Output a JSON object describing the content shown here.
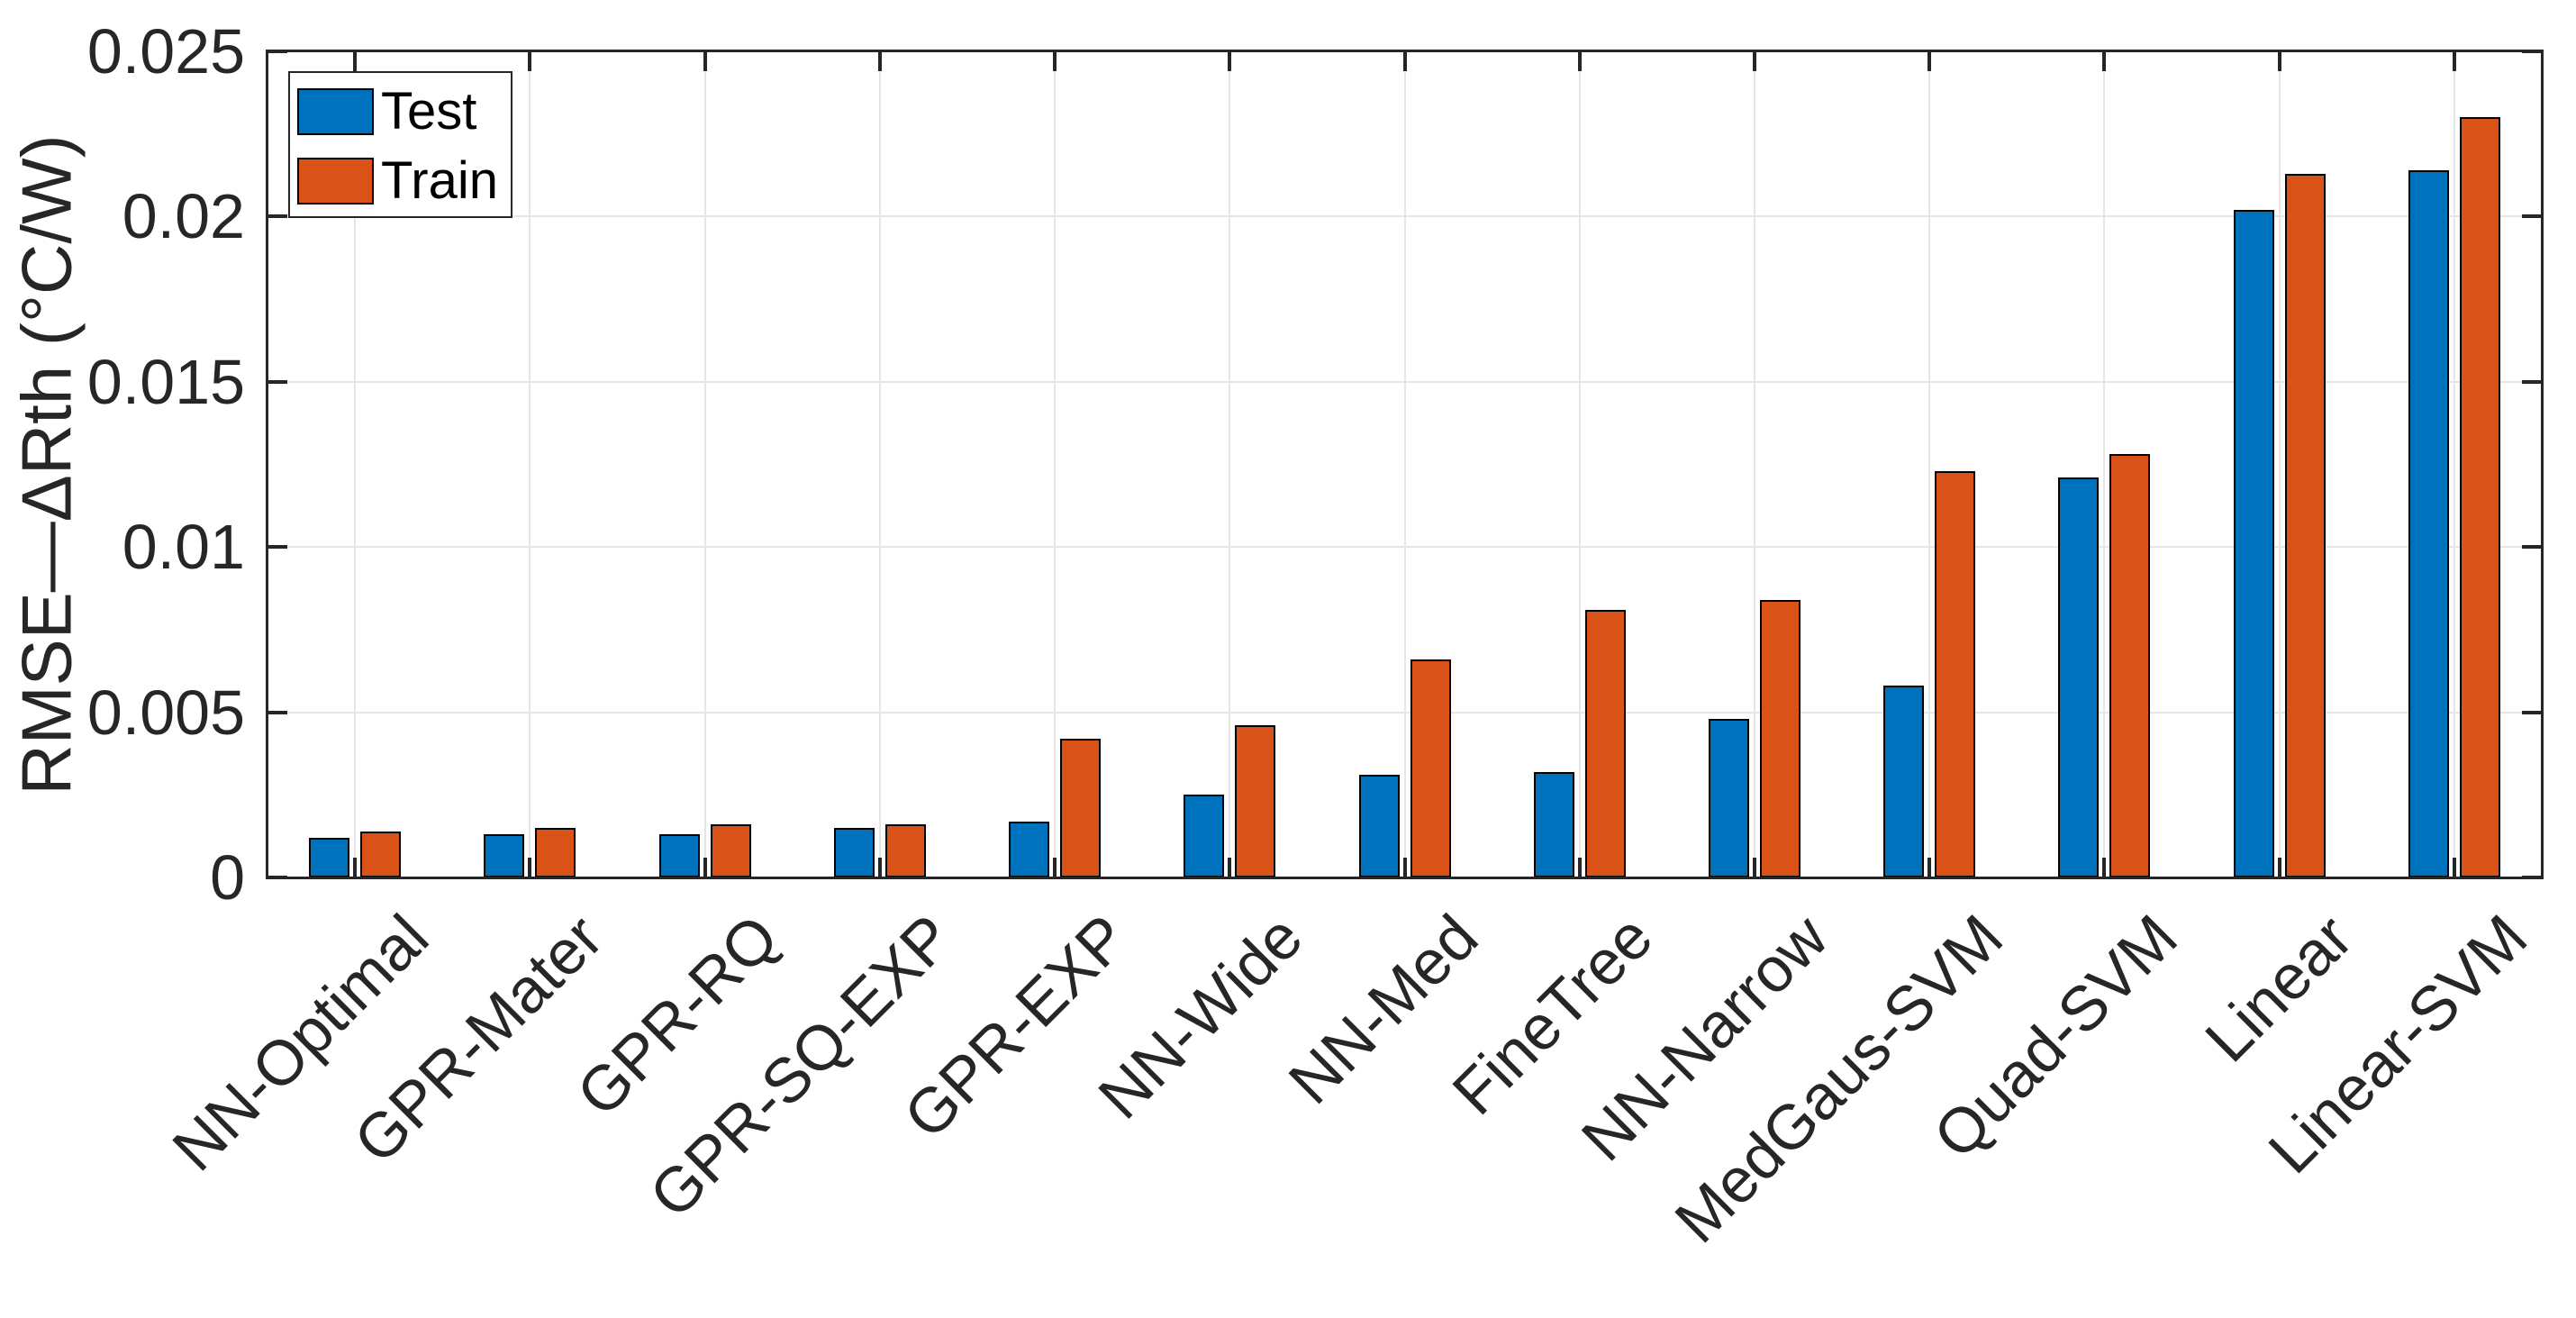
{
  "figure": {
    "background": "#ffffff",
    "axis_color": "#262626",
    "grid_color": "#e6e6e6",
    "tick_label_color": "#262626"
  },
  "legend": {
    "items": [
      {
        "label": "Test",
        "color": "#0072BD"
      },
      {
        "label": "Train",
        "color": "#D95319"
      }
    ]
  },
  "chart_data": {
    "type": "bar",
    "title": "",
    "xlabel": "",
    "ylabel": "RMSE—ΔRth (°C/W)",
    "categories": [
      "NN-Optimal",
      "GPR-Mater",
      "GPR-RQ",
      "GPR-SQ-EXP",
      "GPR-EXP",
      "NN-Wide",
      "NN-Med",
      "FineTree",
      "NN-Narrow",
      "MedGaus-SVM",
      "Quad-SVM",
      "Linear",
      "Linear-SVM"
    ],
    "series": [
      {
        "name": "Test",
        "color": "#0072BD",
        "values": [
          0.0012,
          0.0013,
          0.0013,
          0.0015,
          0.0017,
          0.0025,
          0.0031,
          0.0032,
          0.0048,
          0.0058,
          0.0121,
          0.0202,
          0.0214
        ]
      },
      {
        "name": "Train",
        "color": "#D95319",
        "values": [
          0.0014,
          0.0015,
          0.0016,
          0.0016,
          0.0042,
          0.0046,
          0.0066,
          0.0081,
          0.0084,
          0.0123,
          0.0128,
          0.0213,
          0.023
        ]
      }
    ],
    "ylim": [
      0,
      0.025
    ],
    "yticks": [
      0,
      0.005,
      0.01,
      0.015,
      0.02,
      0.025
    ],
    "ytick_labels": [
      "0",
      "0.005",
      "0.01",
      "0.015",
      "0.02",
      "0.025"
    ],
    "grid": true,
    "legend_position": "top-left",
    "bar_edge_color": "#000000"
  }
}
